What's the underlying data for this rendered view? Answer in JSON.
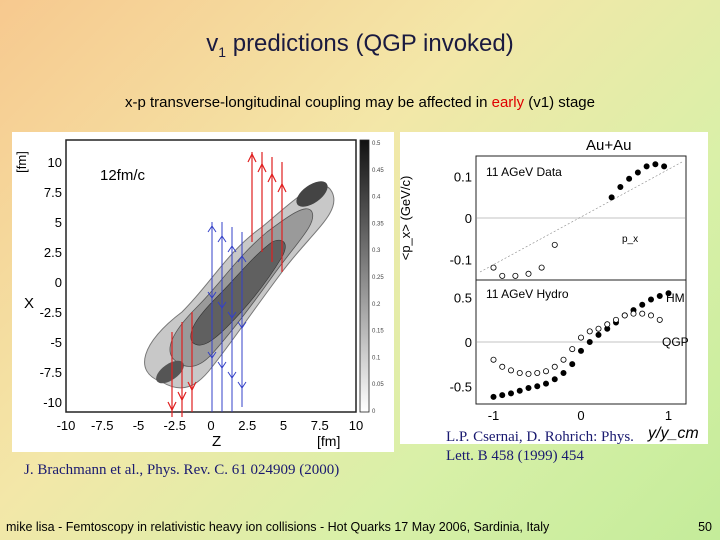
{
  "slide": {
    "title_main": "v",
    "title_sub": "1",
    "title_rest": " predictions (QGP invoked)",
    "subtitle_pre": "x-p transverse-longitudinal coupling may be affected in ",
    "subtitle_hl": "early",
    "subtitle_post": " (v1) stage",
    "cite_left": "J. Brachmann et al., Phys. Rev. C. 61 024909 (2000)",
    "cite_right": "L.P. Csernai, D. Rohrich: Phys. Lett. B 458 (1999) 454",
    "footer": "mike lisa - Femtoscopy in relativistic heavy ion collisions - Hot Quarks 17 May 2006, Sardinia, Italy",
    "page": "50"
  },
  "left_fig": {
    "time_label": "12fm/c",
    "x_axis_label": "Z",
    "x_unit": "[fm]",
    "y_axis_label": "X",
    "y_unit": "[fm]",
    "x_ticks": [
      "-10",
      "-7.5",
      "-5",
      "-2.5",
      "0",
      "2.5",
      "5",
      "7.5",
      "10"
    ],
    "y_ticks": [
      "10",
      "7.5",
      "5",
      "2.5",
      "0",
      "-2.5",
      "-5",
      "-7.5",
      "-10"
    ],
    "scale_ticks": [
      "0.5",
      "0.45",
      "0.4",
      "0.35",
      "0.3",
      "0.25",
      "0.2",
      "0.15",
      "0.1",
      "0.05",
      "0"
    ]
  },
  "right_fig": {
    "title": "Au+Au",
    "y_label": "<p_x> (GeV/c)",
    "x_label": "y/y_cm",
    "panel_top_label": "11 AGeV Data",
    "panel_bottom_label": "11 AGeV Hydro",
    "hm_label": "HM",
    "qgp_label": "QGP",
    "top_y_ticks": [
      "0.1",
      "0",
      "-0.1"
    ],
    "bottom_y_ticks": [
      "0.5",
      "0",
      "-0.5"
    ],
    "x_ticks": [
      "-1",
      "0",
      "1"
    ],
    "inset_label": "p_x"
  },
  "chart_data": {
    "type": "scatter",
    "title": "Au+Au",
    "xlabel": "y/y_cm",
    "ylabel": "<p_x> (GeV/c)",
    "panels": [
      {
        "name": "11 AGeV Data",
        "ylim": [
          -0.15,
          0.15
        ],
        "xlim": [
          -1.2,
          1.2
        ],
        "series": [
          {
            "name": "filled",
            "x": [
              0.35,
              0.45,
              0.55,
              0.65,
              0.75,
              0.85,
              0.95
            ],
            "y": [
              0.05,
              0.075,
              0.095,
              0.11,
              0.125,
              0.13,
              0.125
            ]
          },
          {
            "name": "open",
            "x": [
              -1.0,
              -0.9,
              -0.75,
              -0.6,
              -0.45,
              -0.3
            ],
            "y": [
              -0.12,
              -0.14,
              -0.14,
              -0.135,
              -0.12,
              -0.065
            ]
          }
        ]
      },
      {
        "name": "11 AGeV Hydro",
        "ylim": [
          -0.7,
          0.7
        ],
        "xlim": [
          -1.2,
          1.2
        ],
        "series": [
          {
            "name": "QGP",
            "x": [
              -1.0,
              -0.9,
              -0.8,
              -0.7,
              -0.6,
              -0.5,
              -0.4,
              -0.3,
              -0.2,
              -0.1,
              0.0,
              0.1,
              0.2,
              0.3,
              0.4,
              0.5,
              0.6,
              0.7,
              0.8,
              0.9,
              1.0
            ],
            "y": [
              -0.62,
              -0.6,
              -0.58,
              -0.55,
              -0.52,
              -0.5,
              -0.47,
              -0.42,
              -0.35,
              -0.25,
              -0.1,
              0.0,
              0.08,
              0.15,
              0.22,
              0.3,
              0.36,
              0.42,
              0.48,
              0.52,
              0.55
            ]
          },
          {
            "name": "HM",
            "x": [
              -1.0,
              -0.9,
              -0.8,
              -0.7,
              -0.6,
              -0.5,
              -0.4,
              -0.3,
              -0.2,
              -0.1,
              0.0,
              0.1,
              0.2,
              0.3,
              0.4,
              0.5,
              0.6,
              0.7,
              0.8,
              0.9
            ],
            "y": [
              -0.2,
              -0.28,
              -0.32,
              -0.35,
              -0.36,
              -0.35,
              -0.33,
              -0.28,
              -0.2,
              -0.08,
              0.05,
              0.12,
              0.15,
              0.2,
              0.25,
              0.3,
              0.32,
              0.32,
              0.3,
              0.25
            ]
          }
        ]
      }
    ]
  }
}
